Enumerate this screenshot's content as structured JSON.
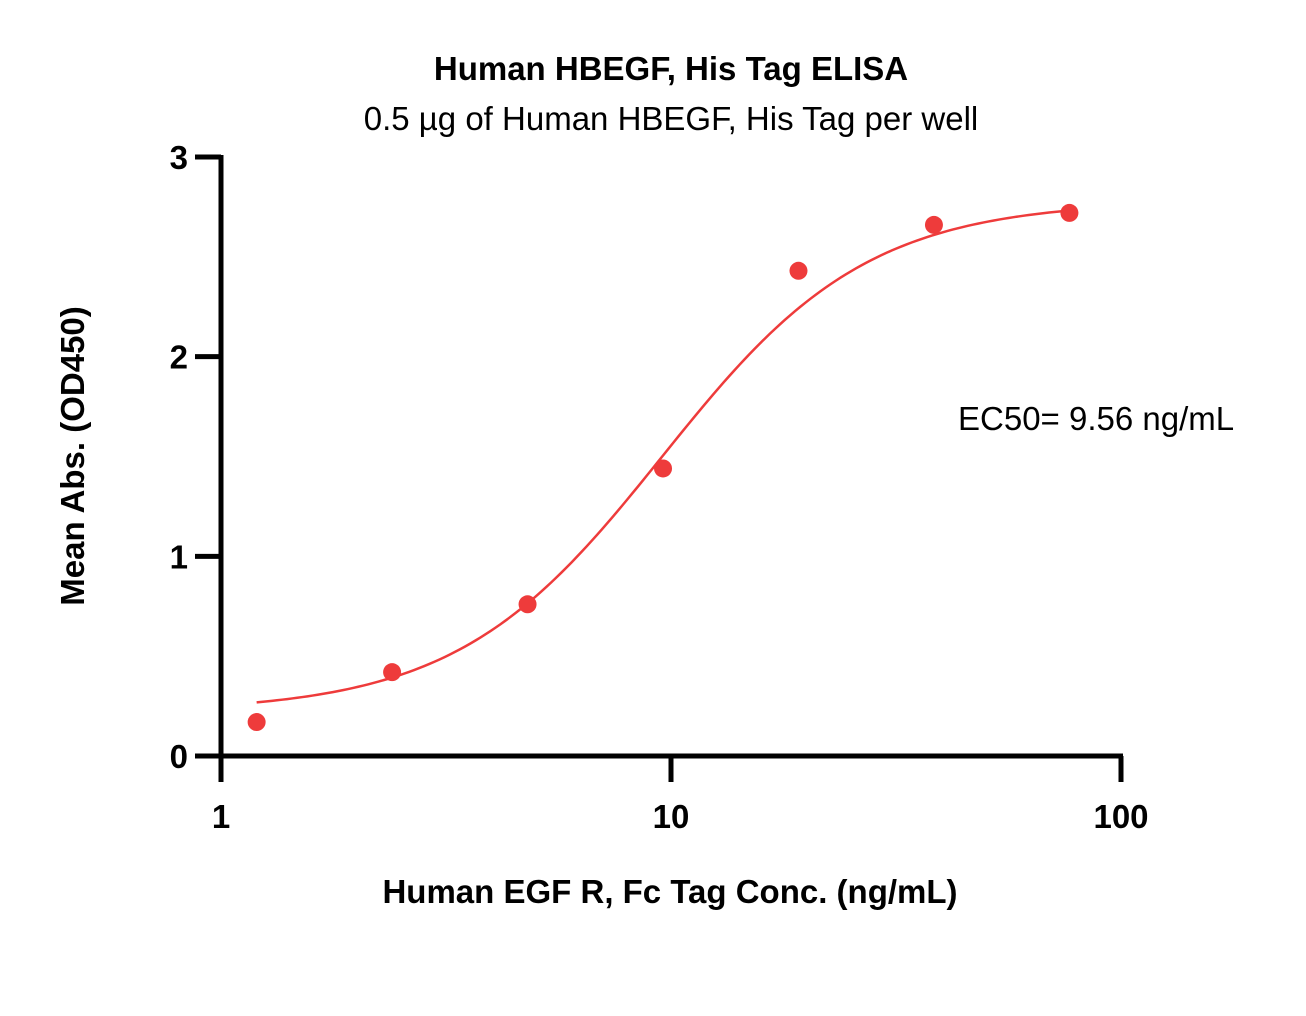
{
  "chart_data": {
    "type": "scatter",
    "title": "Human HBEGF, His Tag ELISA",
    "subtitle": "0.5 µg of Human HBEGF, His Tag per well",
    "xlabel": "Human EGF R, Fc Tag Conc. (ng/mL)",
    "ylabel": "Mean Abs. (OD450)",
    "x_scale": "log",
    "xlim": [
      1,
      100
    ],
    "ylim": [
      0,
      3
    ],
    "x_ticks": [
      1,
      10,
      100
    ],
    "x_tick_labels": [
      "1",
      "10",
      "100"
    ],
    "y_ticks": [
      0,
      1,
      2,
      3
    ],
    "y_tick_labels": [
      "0",
      "1",
      "2",
      "3"
    ],
    "grid": false,
    "legend": "none",
    "annotation": "EC50= 9.56 ng/mL",
    "color": "#ee3b3b",
    "series": [
      {
        "x": [
          1.2,
          2.4,
          4.8,
          9.6,
          19.2,
          38.4,
          76.8
        ],
        "y": [
          0.17,
          0.42,
          0.76,
          1.44,
          2.43,
          2.66,
          2.72
        ]
      }
    ],
    "fit": {
      "model": "4PL",
      "bottom": 0.22,
      "top": 2.78,
      "ec50": 9.56,
      "hill": 1.9
    }
  }
}
